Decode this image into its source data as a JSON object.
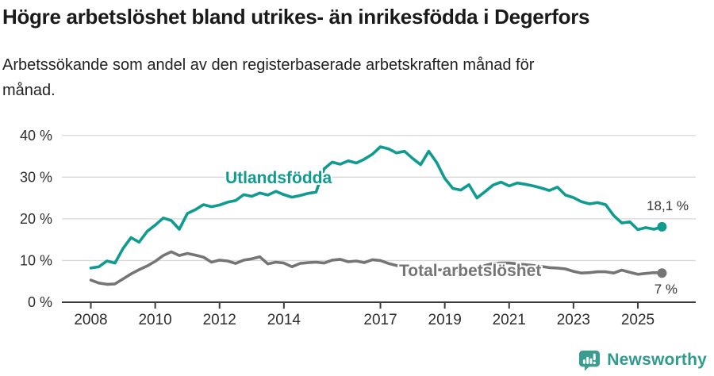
{
  "header": {
    "title": "Högre arbetslöshet bland utrikes- än inrikesfödda i Degerfors",
    "subtitle": "Arbetssökande som andel av den registerbaserade arbetskraften månad för månad."
  },
  "footer": {
    "logo_text": "Newsworthy",
    "logo_icon": "speech-bubble-with-bar-chart-and-exclamation"
  },
  "colors": {
    "series_utlandsfodda": "#0f9b90",
    "series_total": "#757575",
    "grid": "#d8d8d8",
    "axis": "#3b3b3b",
    "tick_text": "#2e2e2e",
    "title_text": "#1a1a1a",
    "logo_teal": "#2f9b8f"
  },
  "annotations": {
    "label_utlandsfodda": "Utlandsfödda",
    "label_total": "Total arbetslöshet",
    "end_label_utlandsfodda": "18,1 %",
    "end_label_total": "7 %"
  },
  "chart_data": {
    "type": "line",
    "title": "Högre arbetslöshet bland utrikes- än inrikesfödda i Degerfors",
    "subtitle": "Arbetssökande som andel av den registerbaserade arbetskraften månad för månad.",
    "unit": "%",
    "x_unit": "decimal year (monthly series, values estimated at quarterly resolution from pixels)",
    "x_start": 2008.0,
    "x_step": 0.25,
    "xlim": [
      2007.1,
      2026.8
    ],
    "ylim": [
      0,
      43
    ],
    "x_ticks": [
      2008,
      2010,
      2012,
      2014,
      2017,
      2019,
      2021,
      2023,
      2025
    ],
    "y_ticks": [
      0,
      10,
      20,
      30,
      40
    ],
    "y_tick_suffix": " %",
    "grid": "horizontal",
    "legend": "inline-series-labels",
    "series": [
      {
        "name": "Utlandsfödda",
        "color": "#0f9b90",
        "end_value": 18.1,
        "end_label": "18,1 %",
        "values": [
          8.2,
          8.5,
          9.9,
          9.4,
          12.9,
          15.5,
          14.4,
          17.0,
          18.5,
          20.2,
          19.6,
          17.5,
          21.3,
          22.2,
          23.4,
          22.9,
          23.3,
          24.0,
          24.4,
          25.8,
          25.4,
          26.2,
          25.7,
          26.6,
          25.8,
          25.2,
          25.6,
          26.1,
          26.4,
          32.0,
          33.6,
          33.1,
          33.9,
          33.4,
          34.3,
          35.5,
          37.3,
          36.8,
          35.8,
          36.2,
          34.5,
          33.0,
          36.2,
          33.5,
          29.7,
          27.3,
          26.9,
          28.2,
          25.0,
          26.5,
          28.1,
          28.8,
          27.9,
          28.6,
          28.3,
          27.9,
          27.4,
          26.8,
          27.6,
          25.7,
          25.1,
          24.1,
          23.6,
          23.9,
          23.4,
          20.8,
          19.0,
          19.3,
          17.4,
          17.9,
          17.5,
          18.1
        ]
      },
      {
        "name": "Total arbetslöshet",
        "color": "#757575",
        "end_value": 7,
        "end_label": "7 %",
        "values": [
          5.3,
          4.6,
          4.3,
          4.4,
          5.6,
          6.8,
          7.8,
          8.7,
          9.8,
          11.2,
          12.1,
          11.2,
          11.7,
          11.3,
          10.8,
          9.6,
          10.1,
          9.9,
          9.3,
          10.1,
          10.4,
          10.9,
          9.2,
          9.6,
          9.4,
          8.5,
          9.3,
          9.5,
          9.6,
          9.4,
          10.1,
          10.3,
          9.7,
          9.9,
          9.5,
          10.2,
          10.0,
          9.3,
          8.8,
          8.5,
          8.3,
          8.1,
          7.9,
          7.8,
          7.7,
          7.6,
          7.5,
          7.7,
          7.9,
          8.8,
          9.3,
          9.4,
          9.4,
          9.2,
          9.0,
          8.8,
          8.6,
          8.3,
          8.2,
          8.0,
          7.4,
          7.0,
          7.1,
          7.3,
          7.3,
          7.0,
          7.7,
          7.2,
          6.7,
          6.9,
          7.1,
          7.0
        ]
      }
    ]
  }
}
